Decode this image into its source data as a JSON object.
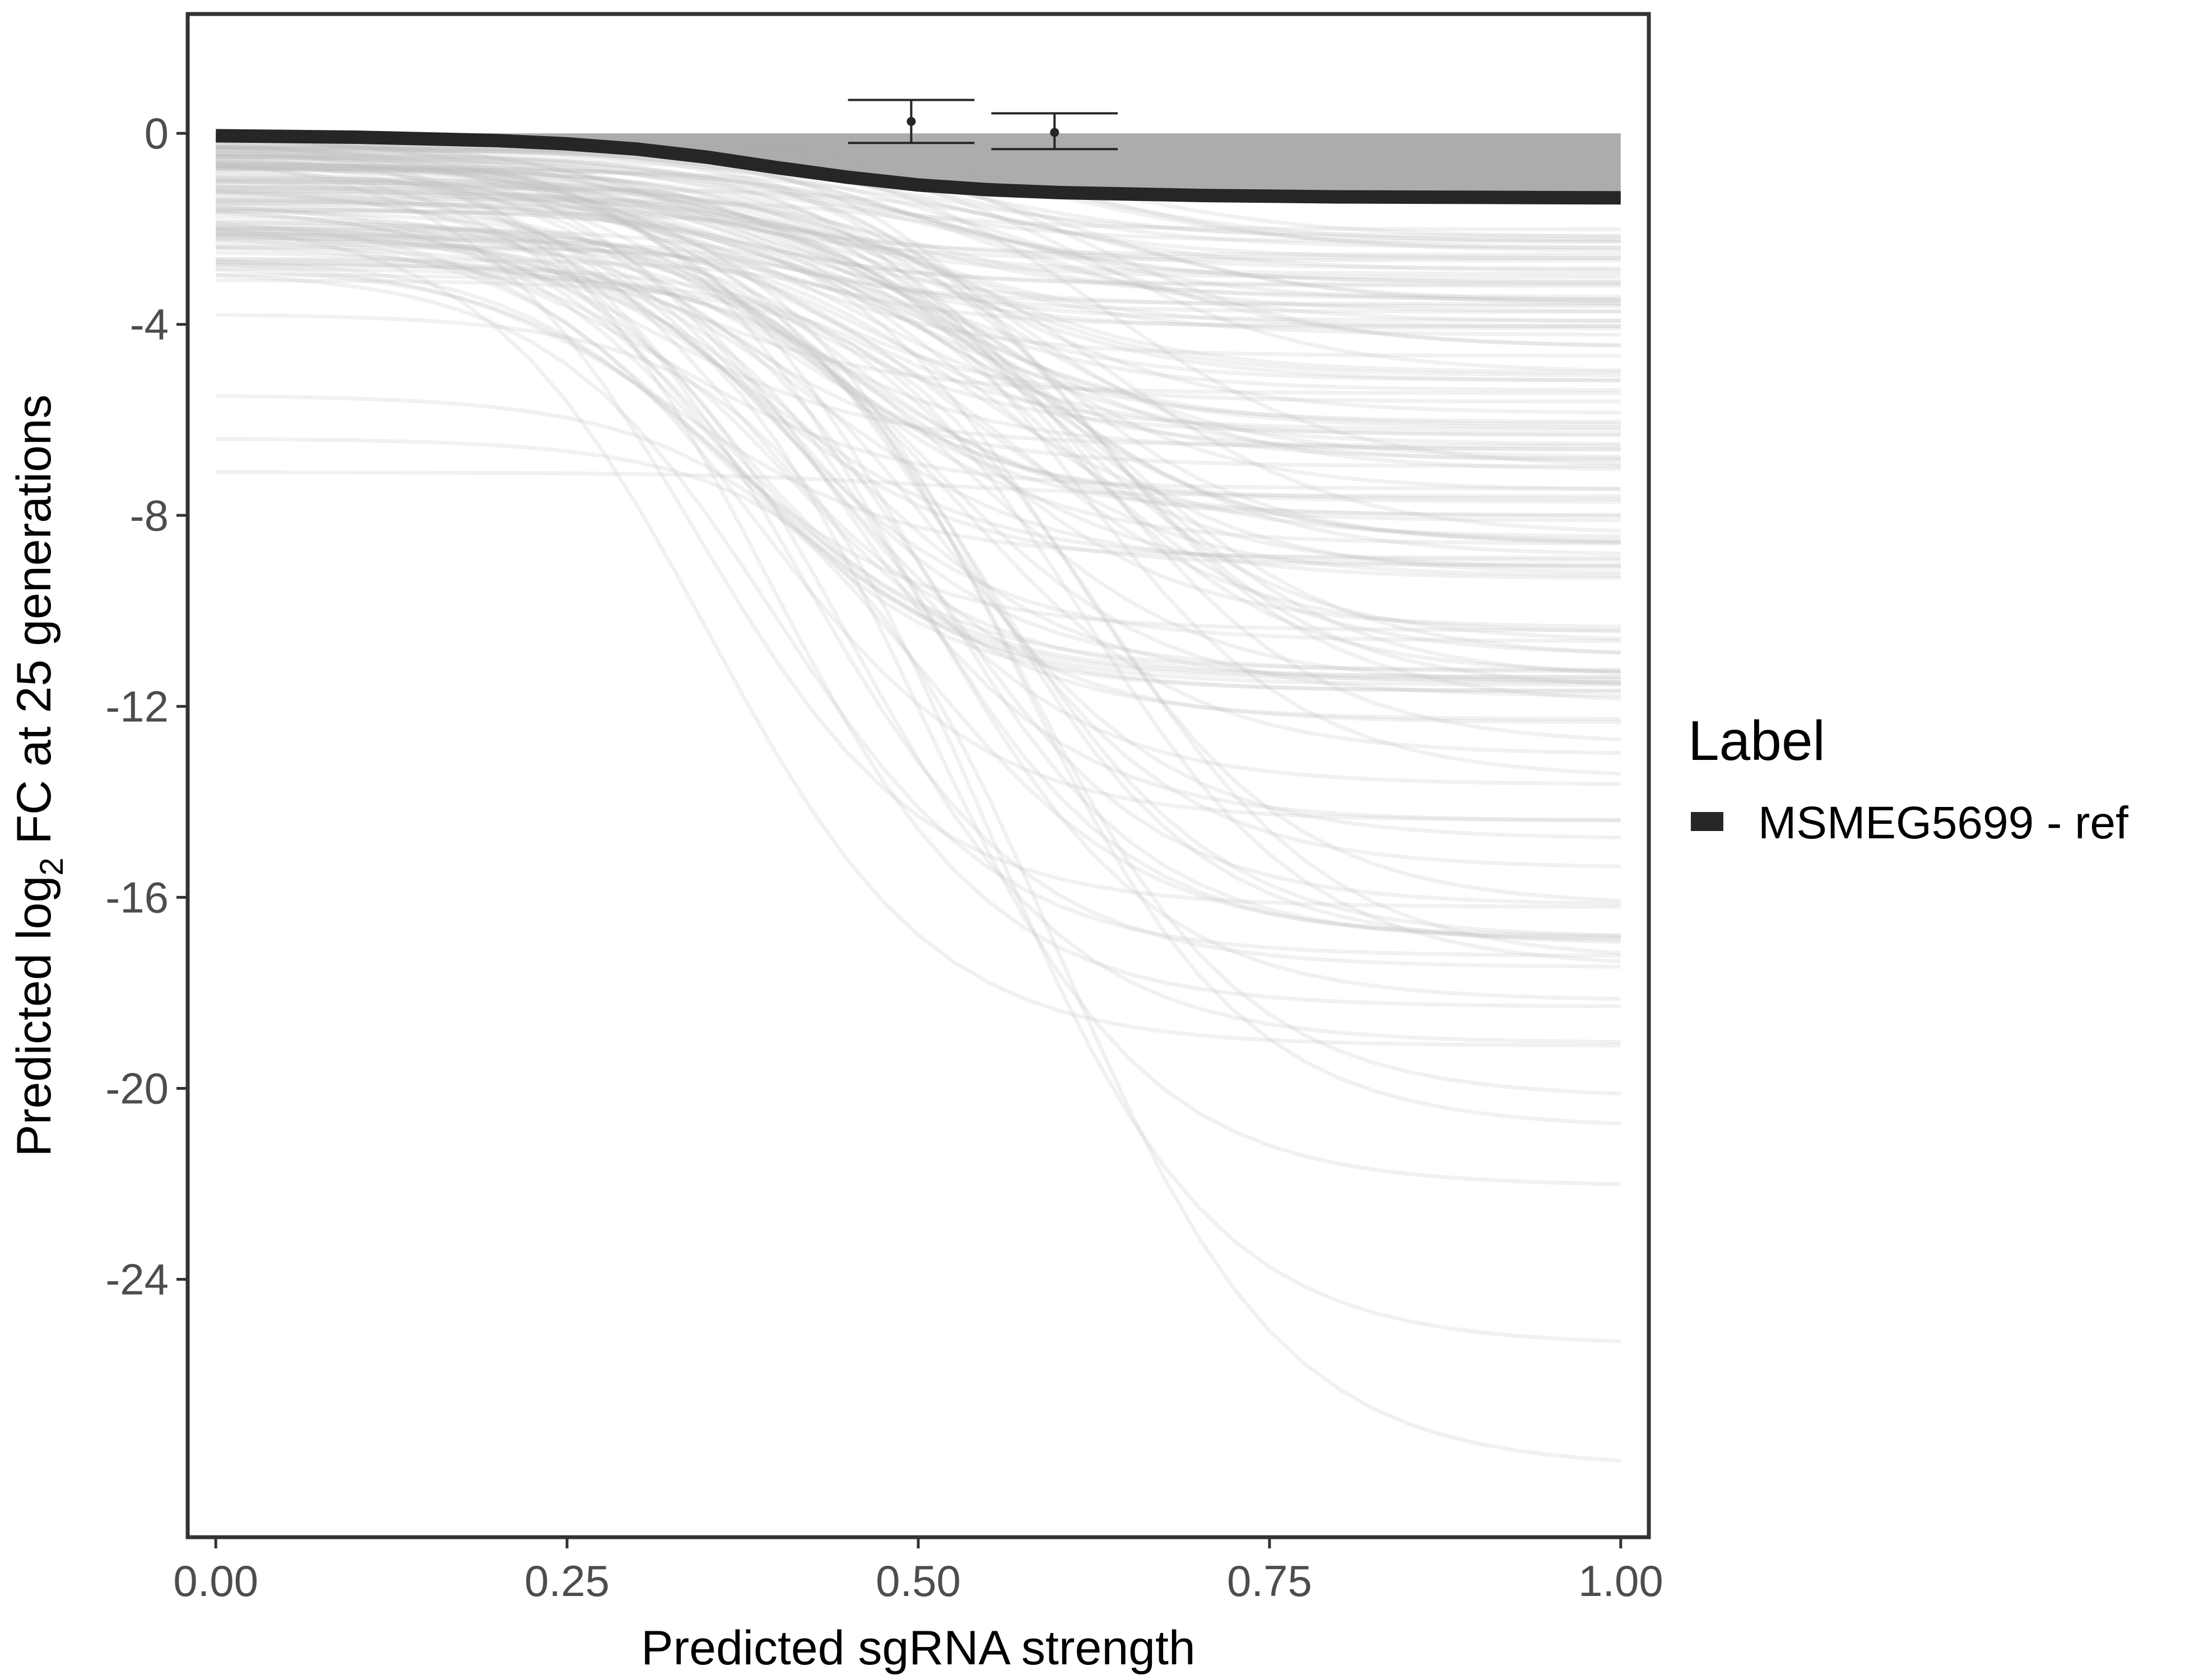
{
  "chart_data": {
    "type": "line",
    "xlabel": "Predicted sgRNA strength",
    "ylabel_prefix": "Predicted  log",
    "ylabel_subscript": "2",
    "ylabel_suffix": " FC at 25 generations",
    "xlim": [
      -0.02,
      1.02
    ],
    "ylim": [
      -29.4,
      2.5
    ],
    "x_ticks": [
      0,
      0.25,
      0.5,
      0.75,
      1
    ],
    "x_tick_labels": [
      "0.00",
      "0.25",
      "0.50",
      "0.75",
      "1.00"
    ],
    "y_ticks": [
      0,
      -4,
      -8,
      -12,
      -16,
      -20,
      -24
    ],
    "y_tick_labels": [
      "0",
      "-4",
      "-8",
      "-12",
      "-16",
      "-20",
      "-24"
    ],
    "grid": false,
    "legend": {
      "title": "Label",
      "position": "right",
      "entries": [
        {
          "label": "MSMEG5699 - ref",
          "color": "#262626"
        }
      ]
    },
    "highlight_series": {
      "label": "MSMEG5699 - ref",
      "color": "#262626",
      "x": [
        0,
        0.1,
        0.2,
        0.25,
        0.3,
        0.35,
        0.4,
        0.45,
        0.5,
        0.55,
        0.6,
        0.7,
        0.8,
        0.9,
        1.0
      ],
      "y": [
        -0.05,
        -0.08,
        -0.15,
        -0.22,
        -0.33,
        -0.5,
        -0.72,
        -0.92,
        -1.08,
        -1.18,
        -1.24,
        -1.3,
        -1.33,
        -1.34,
        -1.35
      ],
      "band_upper": 0
    },
    "error_bars": [
      {
        "x": 0.495,
        "y": 0.25,
        "ymin": -0.2,
        "ymax": 0.7,
        "half_width": 0.045
      },
      {
        "x": 0.597,
        "y": 0.02,
        "ymin": -0.33,
        "ymax": 0.42,
        "half_width": 0.045
      }
    ],
    "background_curve_count": 140,
    "background_color": "#bdbdbd",
    "background_examples": [
      {
        "y0": -0.5,
        "yend": -3.5,
        "mid": 0.55
      },
      {
        "y0": -1.0,
        "yend": -6.5,
        "mid": 0.5
      },
      {
        "y0": -2.5,
        "yend": -11.5,
        "mid": 0.45
      },
      {
        "y0": -5.5,
        "yend": -16.8,
        "mid": 0.5
      },
      {
        "y0": -6.4,
        "yend": -27.8,
        "mid": 0.6
      },
      {
        "y0": -3.8,
        "yend": -25.3,
        "mid": 0.55
      },
      {
        "y0": -7.1,
        "yend": -7.6,
        "mid": 0.5
      }
    ]
  }
}
